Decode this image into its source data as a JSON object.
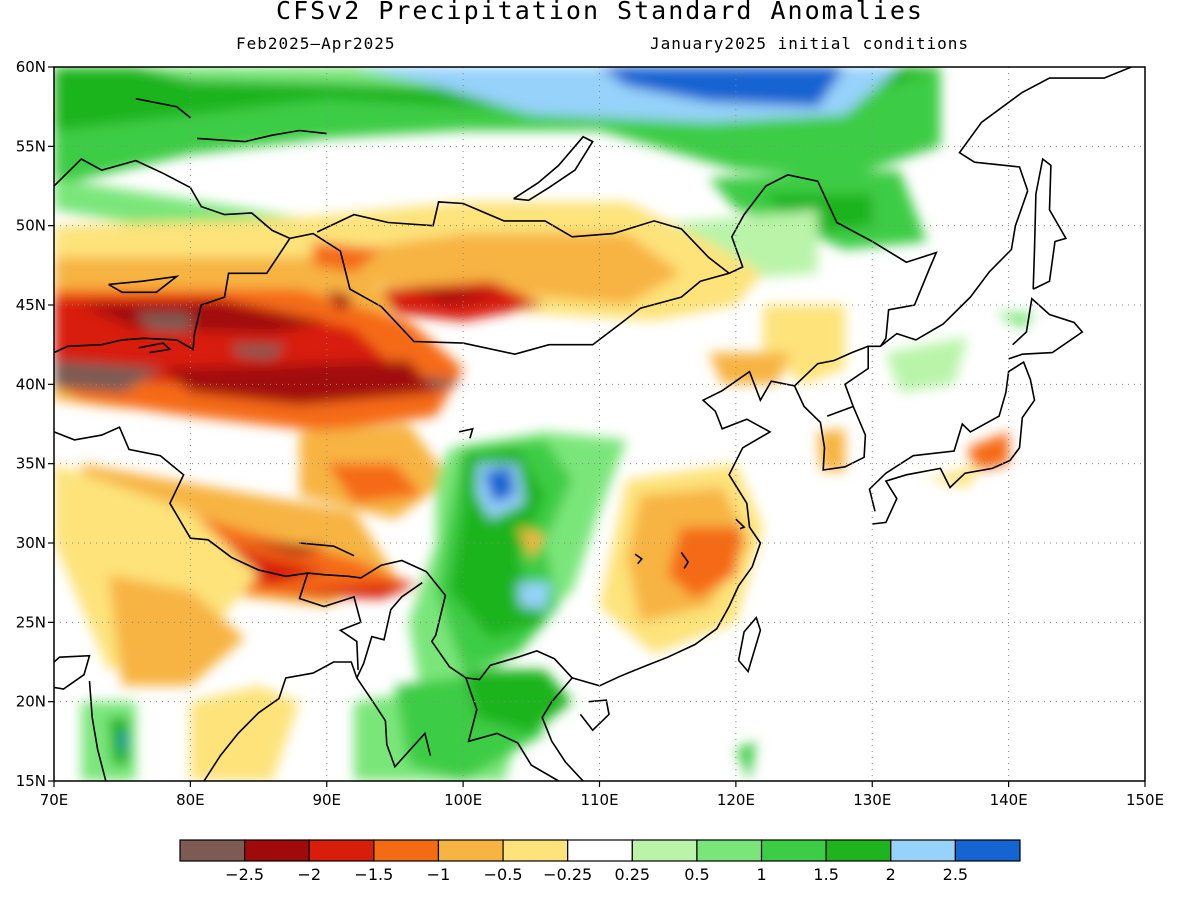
{
  "header": {
    "title": "CFSv2 Precipitation Standard Anomalies",
    "period": "Feb2025–Apr2025",
    "init": "January2025 initial conditions"
  },
  "map": {
    "lon_range": [
      70,
      150
    ],
    "lat_range": [
      15,
      60
    ],
    "lon_ticks": [
      "70E",
      "80E",
      "90E",
      "100E",
      "110E",
      "120E",
      "130E",
      "140E",
      "150E"
    ],
    "lat_ticks": [
      "15N",
      "20N",
      "25N",
      "30N",
      "35N",
      "40N",
      "45N",
      "50N",
      "55N",
      "60N"
    ],
    "gridlines": "dotted"
  },
  "colorbar": {
    "colors": [
      "#7d5b52",
      "#a10a0a",
      "#d81e0a",
      "#f56b14",
      "#f7b443",
      "#fde37a",
      "#ffffff",
      "#b9f4a9",
      "#7ae67a",
      "#3dcc45",
      "#1eb41e",
      "#96d2fa",
      "#1464d2"
    ],
    "tick_labels": [
      "−2.5",
      "−2",
      "−1.5",
      "−1",
      "−0.5",
      "−0.25",
      "0.25",
      "0.5",
      "1",
      "1.5",
      "2",
      "2.5"
    ]
  }
}
